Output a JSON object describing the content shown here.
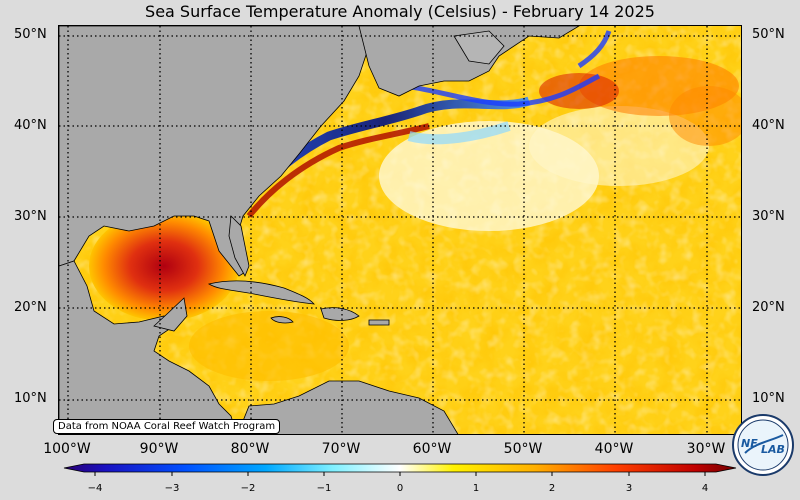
{
  "title": "Sea Surface Temperature Anomaly (Celsius) - February 14 2025",
  "credit": "Data from NOAA Coral Reef Watch Program",
  "lat_labels": [
    "50°N",
    "40°N",
    "30°N",
    "20°N",
    "10°N"
  ],
  "lon_labels": [
    "100°W",
    "90°W",
    "80°W",
    "70°W",
    "60°W",
    "50°W",
    "40°W",
    "30°W"
  ],
  "colorbar": {
    "ticks": [
      "−4",
      "−3",
      "−2",
      "−1",
      "0",
      "1",
      "2",
      "3",
      "4"
    ],
    "range": [
      -4,
      4
    ]
  },
  "logo": {
    "text_left": "NE",
    "text_right": "LAB"
  },
  "colors": {
    "land": "#a9a9a9",
    "background": "#dcdcdc",
    "warm_mid": "#ffd400",
    "hot": "#c00000",
    "cold": "#0a2ac8"
  }
}
